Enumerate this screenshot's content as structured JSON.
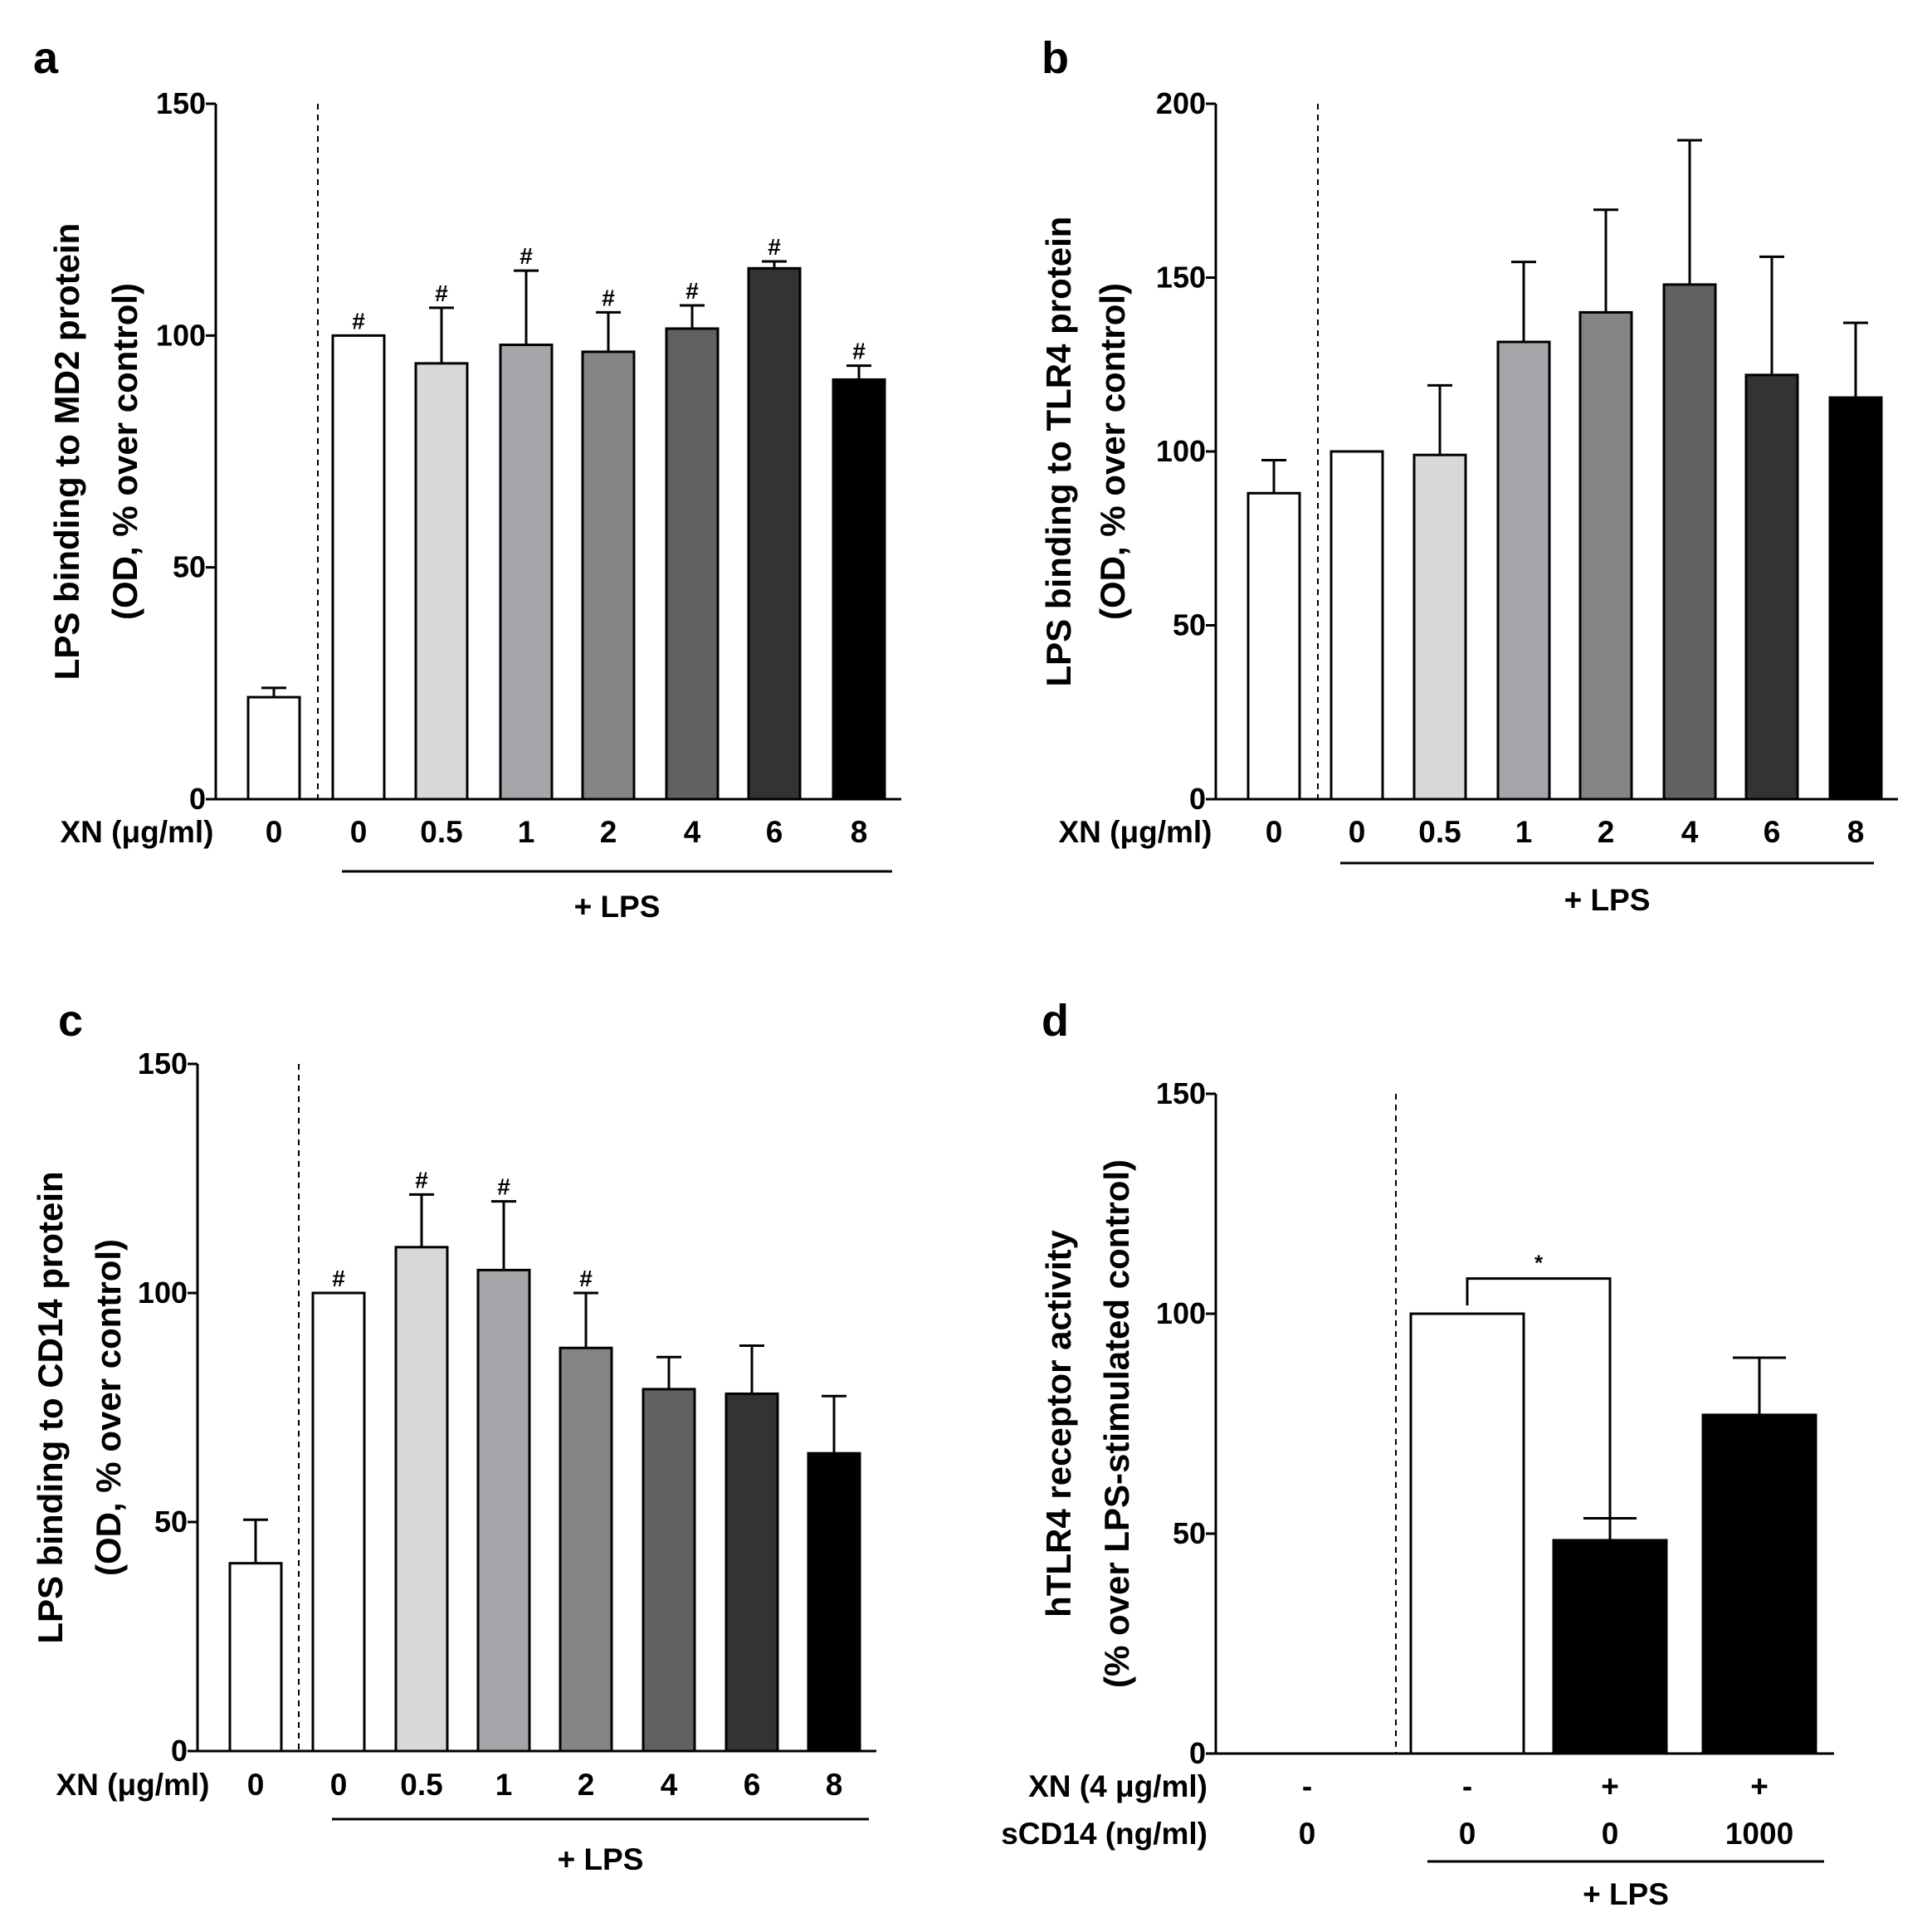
{
  "chart_data": [
    {
      "id": "a",
      "type": "bar",
      "panel_label": "a",
      "ylabel": [
        "LPS binding to MD2 protein",
        "(OD, % over control)"
      ],
      "xlabel": "XN (μg/ml)",
      "group_label": "+ LPS",
      "ylim": [
        0,
        150
      ],
      "yticks": [
        0,
        50,
        100,
        150
      ],
      "categories": [
        "0",
        "0",
        "0.5",
        "1",
        "2",
        "4",
        "6",
        "8"
      ],
      "values": [
        22,
        100,
        94,
        98,
        96.5,
        101.5,
        114.5,
        90.5
      ],
      "errors": [
        2,
        0,
        12,
        16,
        8.5,
        5,
        1.5,
        3
      ],
      "annotations": [
        "",
        "#",
        "#",
        "#",
        "#",
        "#",
        "#",
        "#"
      ],
      "colors": [
        "#ffffff",
        "#ffffff",
        "#d8d8d8",
        "#a5a6aa",
        "#848484",
        "#616161",
        "#333333",
        "#000000"
      ]
    },
    {
      "id": "b",
      "type": "bar",
      "panel_label": "b",
      "ylabel": [
        "LPS binding to TLR4 protein",
        "(OD, % over control)"
      ],
      "xlabel": "XN (μg/ml)",
      "group_label": "+ LPS",
      "ylim": [
        0,
        200
      ],
      "yticks": [
        0,
        50,
        100,
        150,
        200
      ],
      "categories": [
        "0",
        "0",
        "0.5",
        "1",
        "2",
        "4",
        "6",
        "8"
      ],
      "values": [
        88,
        100,
        99,
        131.5,
        140,
        148,
        122,
        115.5
      ],
      "errors": [
        9.5,
        0,
        20,
        23,
        29.5,
        41.5,
        34,
        21.5
      ],
      "annotations": [
        "",
        "",
        "",
        "",
        "",
        "",
        "",
        ""
      ],
      "colors": [
        "#ffffff",
        "#ffffff",
        "#d8d8d8",
        "#a5a6aa",
        "#848484",
        "#616161",
        "#333333",
        "#000000"
      ]
    },
    {
      "id": "c",
      "type": "bar",
      "panel_label": "c",
      "ylabel": [
        "LPS binding to CD14 protein",
        "(OD, % over control)"
      ],
      "xlabel": "XN (μg/ml)",
      "group_label": "+ LPS",
      "ylim": [
        0,
        150
      ],
      "yticks": [
        0,
        50,
        100,
        150
      ],
      "categories": [
        "0",
        "0",
        "0.5",
        "1",
        "2",
        "4",
        "6",
        "8"
      ],
      "values": [
        41,
        100,
        110,
        105,
        88,
        79,
        78,
        65
      ],
      "errors": [
        9.5,
        0,
        11.5,
        15,
        12,
        7,
        10.5,
        12.5
      ],
      "annotations": [
        "",
        "#",
        "#",
        "#",
        "#",
        "",
        "",
        ""
      ],
      "colors": [
        "#ffffff",
        "#ffffff",
        "#d8d8d8",
        "#a5a6aa",
        "#848484",
        "#616161",
        "#333333",
        "#000000"
      ]
    },
    {
      "id": "d",
      "type": "bar",
      "panel_label": "d",
      "ylabel": [
        "hTLR4 receptor activity",
        "(% over LPS-stimulated control)"
      ],
      "ylim": [
        0,
        150
      ],
      "yticks": [
        0,
        50,
        100,
        150
      ],
      "row_labels": [
        "XN (4 μg/ml)",
        "sCD14 (ng/ml)"
      ],
      "xn_row": [
        "-",
        "-",
        "+",
        "+"
      ],
      "scd14_row": [
        "0",
        "0",
        "0",
        "1000"
      ],
      "group_label": "+ LPS",
      "values": [
        null,
        100,
        48.5,
        77
      ],
      "errors": [
        0,
        0,
        5,
        13
      ],
      "colors": [
        "#ffffff",
        "#ffffff",
        "#000000",
        "#000000"
      ],
      "significance": {
        "from": 1,
        "to": 2,
        "label": "*"
      }
    }
  ]
}
